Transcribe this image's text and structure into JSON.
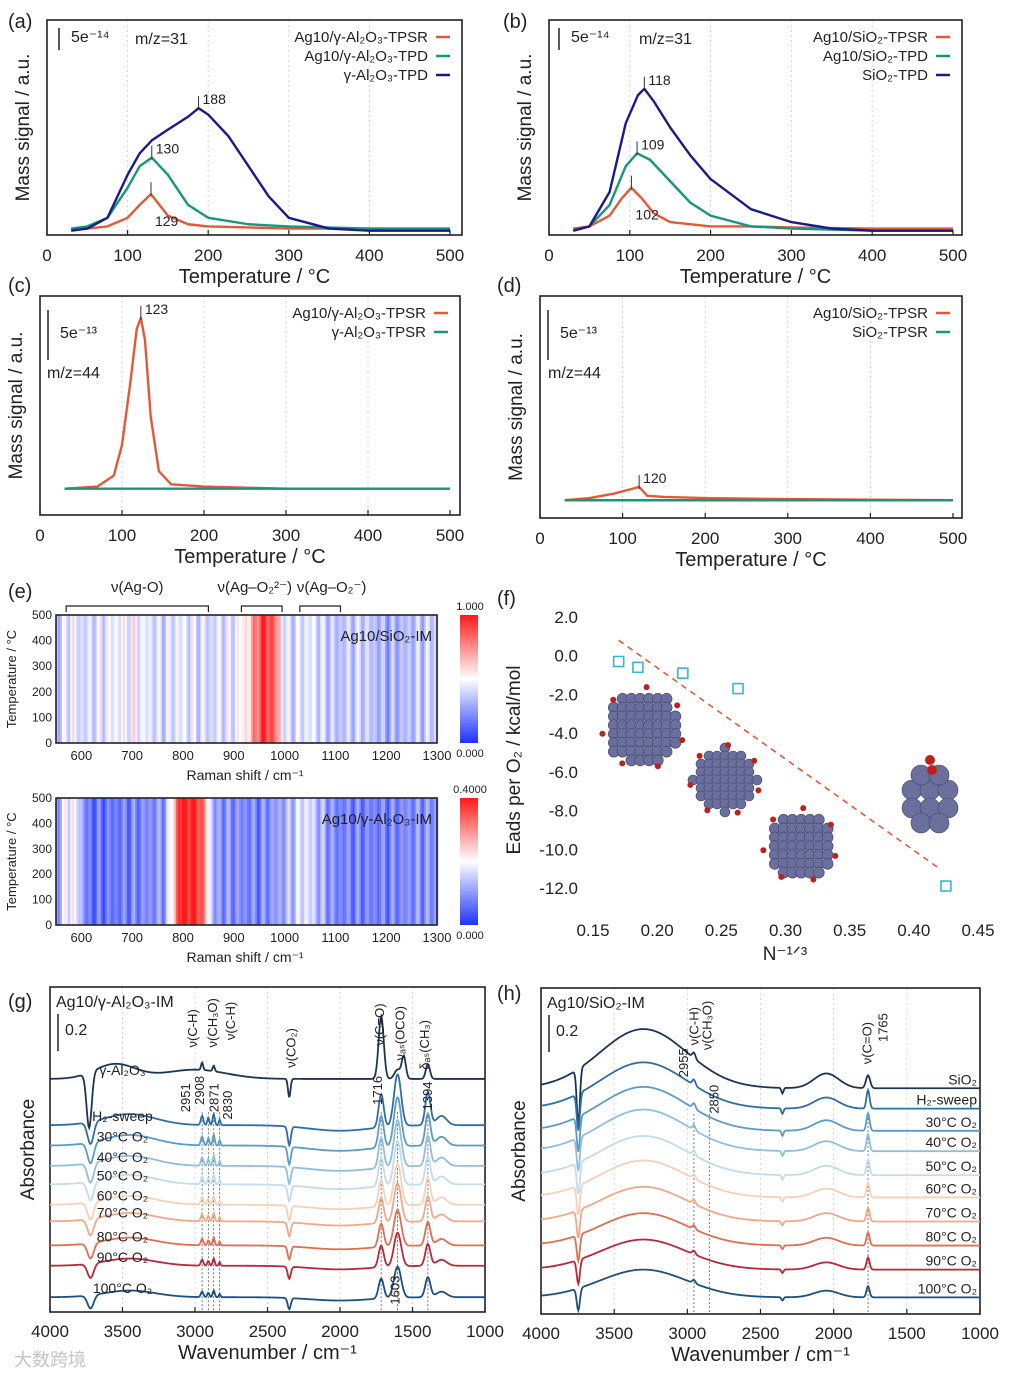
{
  "watermark": "大数跨境",
  "chart_data": [
    {
      "id": "a",
      "type": "line",
      "panel_label": "(a)",
      "scale_label": "5e⁻¹⁴",
      "annotation": "m/z=31",
      "xlabel": "Temperature / °C",
      "ylabel": "Mass signal / a.u.",
      "xlim": [
        0,
        500
      ],
      "ylim": [
        0,
        1
      ],
      "xticks": [
        0,
        100,
        200,
        300,
        400,
        500
      ],
      "series": [
        {
          "name": "Ag10/γ-Al₂O₃-TPSR",
          "color": "#e05a3a",
          "x": [
            30,
            50,
            75,
            100,
            115,
            129,
            150,
            175,
            200,
            250,
            300,
            400,
            500
          ],
          "y": [
            0.03,
            0.03,
            0.04,
            0.08,
            0.14,
            0.19,
            0.09,
            0.05,
            0.04,
            0.035,
            0.03,
            0.03,
            0.03
          ]
        },
        {
          "name": "Ag10/γ-Al₂O₃-TPD",
          "color": "#17977a",
          "x": [
            30,
            50,
            75,
            100,
            115,
            130,
            150,
            175,
            200,
            250,
            300,
            400,
            500
          ],
          "y": [
            0.03,
            0.04,
            0.08,
            0.22,
            0.32,
            0.36,
            0.28,
            0.14,
            0.08,
            0.05,
            0.04,
            0.03,
            0.03
          ]
        },
        {
          "name": "γ-Al₂O₃-TPD",
          "color": "#1a1a8c",
          "x": [
            30,
            50,
            75,
            100,
            115,
            130,
            150,
            175,
            188,
            200,
            225,
            250,
            275,
            300,
            350,
            400,
            500
          ],
          "y": [
            0.02,
            0.03,
            0.08,
            0.28,
            0.38,
            0.44,
            0.49,
            0.55,
            0.59,
            0.56,
            0.46,
            0.32,
            0.18,
            0.08,
            0.03,
            0.02,
            0.02
          ]
        }
      ],
      "peak_labels": [
        {
          "text": "129",
          "x": 129,
          "y": 0.19
        },
        {
          "text": "130",
          "x": 130,
          "y": 0.36
        },
        {
          "text": "188",
          "x": 188,
          "y": 0.59
        }
      ]
    },
    {
      "id": "b",
      "type": "line",
      "panel_label": "(b)",
      "scale_label": "5e⁻¹⁴",
      "annotation": "m/z=31",
      "xlabel": "Temperature / °C",
      "ylabel": "Mass signal / a.u.",
      "xlim": [
        0,
        500
      ],
      "ylim": [
        0,
        1
      ],
      "xticks": [
        0,
        100,
        200,
        300,
        400,
        500
      ],
      "series": [
        {
          "name": "Ag10/SiO₂-TPSR",
          "color": "#e05a3a",
          "x": [
            30,
            50,
            75,
            90,
            102,
            115,
            130,
            150,
            200,
            250,
            300,
            400,
            500
          ],
          "y": [
            0.03,
            0.04,
            0.09,
            0.17,
            0.22,
            0.17,
            0.1,
            0.06,
            0.04,
            0.04,
            0.035,
            0.03,
            0.03
          ]
        },
        {
          "name": "Ag10/SiO₂-TPD",
          "color": "#17977a",
          "x": [
            30,
            50,
            75,
            95,
            109,
            125,
            150,
            175,
            200,
            250,
            300,
            400,
            500
          ],
          "y": [
            0.02,
            0.04,
            0.14,
            0.32,
            0.38,
            0.35,
            0.25,
            0.15,
            0.09,
            0.04,
            0.03,
            0.02,
            0.02
          ]
        },
        {
          "name": "SiO₂-TPD",
          "color": "#1a1a8c",
          "x": [
            30,
            50,
            75,
            95,
            110,
            118,
            130,
            150,
            175,
            200,
            250,
            300,
            350,
            400,
            500
          ],
          "y": [
            0.02,
            0.04,
            0.2,
            0.52,
            0.65,
            0.68,
            0.62,
            0.5,
            0.37,
            0.26,
            0.12,
            0.06,
            0.03,
            0.02,
            0.02
          ]
        }
      ],
      "peak_labels": [
        {
          "text": "102",
          "x": 102,
          "y": 0.22
        },
        {
          "text": "109",
          "x": 109,
          "y": 0.38
        },
        {
          "text": "118",
          "x": 118,
          "y": 0.68
        }
      ]
    },
    {
      "id": "c",
      "type": "line",
      "panel_label": "(c)",
      "scale_label": "5e⁻¹³",
      "annotation": "m/z=44",
      "xlabel": "Temperature / °C",
      "ylabel": "Mass signal / a.u.",
      "xlim": [
        0,
        500
      ],
      "ylim": [
        0,
        1
      ],
      "xticks": [
        0,
        100,
        200,
        300,
        400,
        500
      ],
      "series": [
        {
          "name": "Ag10/γ-Al₂O₃-TPSR",
          "color": "#e05a3a",
          "x": [
            30,
            70,
            90,
            100,
            110,
            118,
            123,
            128,
            135,
            145,
            160,
            200,
            300,
            500
          ],
          "y": [
            0.12,
            0.13,
            0.18,
            0.32,
            0.6,
            0.85,
            0.9,
            0.8,
            0.45,
            0.2,
            0.14,
            0.13,
            0.12,
            0.12
          ]
        },
        {
          "name": "γ-Al₂O₃-TPSR",
          "color": "#17977a",
          "x": [
            30,
            500
          ],
          "y": [
            0.12,
            0.12
          ]
        }
      ],
      "peak_labels": [
        {
          "text": "123",
          "x": 123,
          "y": 0.9
        }
      ]
    },
    {
      "id": "d",
      "type": "line",
      "panel_label": "(d)",
      "scale_label": "5e⁻¹³",
      "annotation": "m/z=44",
      "xlabel": "Temperature / °C",
      "ylabel": "Mass signal / a.u.",
      "xlim": [
        0,
        500
      ],
      "ylim": [
        0,
        1
      ],
      "xticks": [
        0,
        100,
        200,
        300,
        400,
        500
      ],
      "series": [
        {
          "name": "Ag10/SiO₂-TPSR",
          "color": "#e05a3a",
          "x": [
            30,
            60,
            90,
            110,
            120,
            130,
            150,
            200,
            300,
            500
          ],
          "y": [
            0.08,
            0.09,
            0.11,
            0.13,
            0.14,
            0.1,
            0.095,
            0.09,
            0.085,
            0.08
          ]
        },
        {
          "name": "SiO₂-TPSR",
          "color": "#17977a",
          "x": [
            30,
            500
          ],
          "y": [
            0.08,
            0.08
          ]
        }
      ],
      "peak_labels": [
        {
          "text": "120",
          "x": 120,
          "y": 0.14
        }
      ]
    },
    {
      "id": "e",
      "type": "heatmap",
      "panel_label": "(e)",
      "xlabel": "Raman shift / cm⁻¹",
      "ylabel": "Temperature / °C",
      "xlim": [
        550,
        1300
      ],
      "ylim": [
        0,
        500
      ],
      "xticks": [
        600,
        700,
        800,
        900,
        1000,
        1100,
        1200,
        1300
      ],
      "yticks": [
        0,
        100,
        200,
        300,
        400,
        500
      ],
      "bands": [
        {
          "label": "ν(Ag-O)",
          "range": [
            570,
            850
          ]
        },
        {
          "label": "ν(Ag–O₂²⁻)",
          "range": [
            915,
            995
          ]
        },
        {
          "label": "ν(Ag–O₂⁻)",
          "range": [
            1030,
            1110
          ]
        }
      ],
      "maps": [
        {
          "name": "Ag10/SiO₂-IM",
          "colorbar_max": "1.000",
          "colorbar_min": "0.000",
          "profile_x": [
            550,
            580,
            600,
            650,
            700,
            750,
            800,
            850,
            900,
            930,
            945,
            960,
            975,
            990,
            1000,
            1050,
            1100,
            1150,
            1200,
            1250,
            1300
          ],
          "profile_v": [
            0.35,
            0.5,
            0.4,
            0.45,
            0.5,
            0.4,
            0.45,
            0.4,
            0.45,
            0.6,
            0.85,
            0.95,
            0.85,
            0.6,
            0.4,
            0.45,
            0.35,
            0.4,
            0.3,
            0.35,
            0.4
          ]
        },
        {
          "name": "Ag10/γ-Al₂O₃-IM",
          "colorbar_max": "0.4000",
          "colorbar_min": "0.000",
          "profile_x": [
            550,
            570,
            590,
            610,
            700,
            760,
            780,
            790,
            800,
            830,
            845,
            860,
            950,
            1000,
            1040,
            1060,
            1100,
            1200,
            1300
          ],
          "profile_v": [
            0.25,
            0.5,
            0.45,
            0.15,
            0.2,
            0.25,
            0.6,
            0.95,
            1.0,
            0.95,
            0.6,
            0.25,
            0.2,
            0.3,
            0.45,
            0.35,
            0.2,
            0.2,
            0.25
          ]
        }
      ]
    },
    {
      "id": "f",
      "type": "scatter",
      "panel_label": "(f)",
      "xlabel": "N⁻¹ᐟ³",
      "ylabel": "Eads per O₂ / kcal/mol",
      "xlim": [
        0.15,
        0.45
      ],
      "ylim": [
        -12,
        2
      ],
      "xticks": [
        "0.15",
        "0.20",
        "0.25",
        "0.30",
        "0.35",
        "0.40",
        "0.45"
      ],
      "yticks": [
        "2.0",
        "0.0",
        "-2.0",
        "-4.0",
        "-6.0",
        "-8.0",
        "-10.0",
        "-12.0"
      ],
      "points": {
        "x": [
          0.17,
          0.185,
          0.22,
          0.263,
          0.425
        ],
        "y": [
          -0.3,
          -0.6,
          -0.9,
          -1.7,
          -11.9
        ]
      },
      "fit_line": {
        "x": [
          0.17,
          0.42
        ],
        "y": [
          0.8,
          -11.0
        ]
      },
      "point_color": "#3bb6d0",
      "line_color": "#e05a3a"
    },
    {
      "id": "g",
      "type": "line",
      "panel_label": "(g)",
      "title": "Ag10/γ-Al₂O₃-IM",
      "scale_label": "0.2",
      "xlabel": "Wavenumber / cm⁻¹",
      "ylabel": "Absorbance",
      "xlim": [
        4000,
        1000
      ],
      "ylim": [
        0,
        1.757
      ],
      "xticks": [
        4000,
        3500,
        3000,
        2500,
        2000,
        1500,
        1000
      ],
      "reference_peaks": [
        [
          3730,
          -0.3,
          25
        ],
        [
          3550,
          0.08,
          200
        ],
        [
          3000,
          0.05,
          300
        ],
        [
          2951,
          0.04,
          10
        ],
        [
          2871,
          0.03,
          10
        ],
        [
          2350,
          -0.1,
          12
        ],
        [
          1716,
          0.34,
          25
        ],
        [
          1560,
          0.12,
          20
        ],
        [
          1603,
          0.05,
          30
        ],
        [
          1394,
          0.08,
          20
        ]
      ],
      "sample_peaks": [
        [
          3720,
          -0.12,
          30
        ],
        [
          3450,
          0.06,
          250
        ],
        [
          2951,
          0.05,
          12
        ],
        [
          2908,
          0.04,
          10
        ],
        [
          2871,
          0.06,
          10
        ],
        [
          2830,
          0.03,
          8
        ],
        [
          2350,
          -0.1,
          15
        ],
        [
          2000,
          -0.03,
          300
        ],
        [
          1716,
          0.18,
          25
        ],
        [
          1603,
          0.28,
          35
        ],
        [
          1394,
          0.18,
          25
        ],
        [
          1300,
          0.05,
          50
        ]
      ],
      "series": [
        {
          "label": "γ-Al₂O₃",
          "color": "#1b3556",
          "offset": 1.26,
          "scale": 1,
          "reference": true
        },
        {
          "label": "H₂-sweep",
          "color": "#2f6ea5",
          "offset": 1.01,
          "scale": 1.0
        },
        {
          "label": "30°C O₂",
          "color": "#5a9bc8",
          "offset": 0.9,
          "scale": 0.95
        },
        {
          "label": "40°C O₂",
          "color": "#8fbfdd",
          "offset": 0.79,
          "scale": 0.9
        },
        {
          "label": "50°C O₂",
          "color": "#c1dcec",
          "offset": 0.69,
          "scale": 0.85
        },
        {
          "label": "60°C O₂",
          "color": "#f6d1b8",
          "offset": 0.58,
          "scale": 0.8
        },
        {
          "label": "70°C O₂",
          "color": "#f1a889",
          "offset": 0.49,
          "scale": 0.75
        },
        {
          "label": "80°C O₂",
          "color": "#de6f52",
          "offset": 0.36,
          "scale": 0.7
        },
        {
          "label": "90°C O₂",
          "color": "#b8283a",
          "offset": 0.25,
          "scale": 0.65
        },
        {
          "label": "100°C O₂",
          "color": "#1d4f80",
          "offset": 0.08,
          "scale": 0.6
        }
      ],
      "guides": [
        2951,
        2908,
        2871,
        2830,
        1716,
        1603,
        1394
      ],
      "annotations": [
        {
          "text": "ν(C-H)",
          "x": 2960,
          "y": 1.43
        },
        {
          "text": "ν(CH₃O)",
          "x": 2890,
          "y": 1.43
        },
        {
          "text": "ν(C-H)",
          "x": 2780,
          "y": 1.47
        },
        {
          "text": "ν(CO₂)",
          "x": 2340,
          "y": 1.32
        },
        {
          "text": "ν(C=O)",
          "x": 1730,
          "y": 1.44
        },
        {
          "text": "νₐₛ(OCO)",
          "x": 1590,
          "y": 1.36
        },
        {
          "text": "δₐₛ(CH₃)",
          "x": 1420,
          "y": 1.31
        },
        {
          "text": "2951",
          "x": 2985,
          "y": 1.08
        },
        {
          "text": "2908",
          "x": 2925,
          "y": 1.12
        },
        {
          "text": "2871",
          "x": 2860,
          "y": 1.08
        },
        {
          "text": "2830",
          "x": 2800,
          "y": 1.04
        },
        {
          "text": "1716",
          "x": 1745,
          "y": 1.12
        },
        {
          "text": "1394",
          "x": 1400,
          "y": 1.09
        },
        {
          "text": "1603",
          "x": 1625,
          "y": 0.04
        }
      ]
    },
    {
      "id": "h",
      "type": "line",
      "panel_label": "(h)",
      "title": "Ag10/SiO₂-IM",
      "scale_label": "0.2",
      "xlabel": "Wavenumber / cm⁻¹",
      "ylabel": "Absorbance",
      "xlim": [
        4000,
        1000
      ],
      "ylim": [
        0,
        1.762
      ],
      "xticks": [
        4000,
        3500,
        3000,
        2500,
        2000,
        1500,
        1000
      ],
      "reference_peaks": [
        [
          3745,
          -0.3,
          15
        ],
        [
          3300,
          0.32,
          420
        ],
        [
          2955,
          0.03,
          15
        ],
        [
          2350,
          -0.03,
          10
        ],
        [
          2050,
          0.08,
          120
        ],
        [
          1765,
          0.07,
          20
        ]
      ],
      "sample_peaks": [
        [
          3745,
          -0.2,
          15
        ],
        [
          3300,
          0.25,
          420
        ],
        [
          2955,
          0.03,
          15
        ],
        [
          2350,
          -0.03,
          10
        ],
        [
          2050,
          0.06,
          120
        ],
        [
          1765,
          0.1,
          15
        ]
      ],
      "series": [
        {
          "label": "SiO₂",
          "color": "#1b3556",
          "offset": 1.22,
          "scale": 1,
          "reference": true
        },
        {
          "label": "H₂-sweep",
          "color": "#2f6ea5",
          "offset": 1.11,
          "scale": 1.0
        },
        {
          "label": "30°C O₂",
          "color": "#5a9bc8",
          "offset": 0.99,
          "scale": 0.95
        },
        {
          "label": "40°C O₂",
          "color": "#8fbfdd",
          "offset": 0.88,
          "scale": 0.9
        },
        {
          "label": "50°C O₂",
          "color": "#c1dcec",
          "offset": 0.75,
          "scale": 0.85
        },
        {
          "label": "60°C O₂",
          "color": "#f6d1b8",
          "offset": 0.63,
          "scale": 0.8
        },
        {
          "label": "70°C O₂",
          "color": "#f1a889",
          "offset": 0.5,
          "scale": 0.75
        },
        {
          "label": "80°C O₂",
          "color": "#de6f52",
          "offset": 0.37,
          "scale": 0.7
        },
        {
          "label": "90°C O₂",
          "color": "#b8283a",
          "offset": 0.24,
          "scale": 0.65
        },
        {
          "label": "100°C O₂",
          "color": "#1d4f80",
          "offset": 0.09,
          "scale": 0.6
        }
      ],
      "guides": [
        2955,
        2850,
        1765
      ],
      "annotations": [
        {
          "text": "ν(C-H)",
          "x": 2970,
          "y": 1.29
        },
        {
          "text": "ν(CH₃O)",
          "x": 2870,
          "y": 1.21
        },
        {
          "text": "2955",
          "x": 2990,
          "y": 1.28
        },
        {
          "text": "2850",
          "x": 2820,
          "y": 1.18
        },
        {
          "text": "ν(C=O)",
          "x": 1775,
          "y": 1.35
        },
        {
          "text": "1765",
          "x": 1700,
          "y": 1.47
        }
      ]
    }
  ]
}
